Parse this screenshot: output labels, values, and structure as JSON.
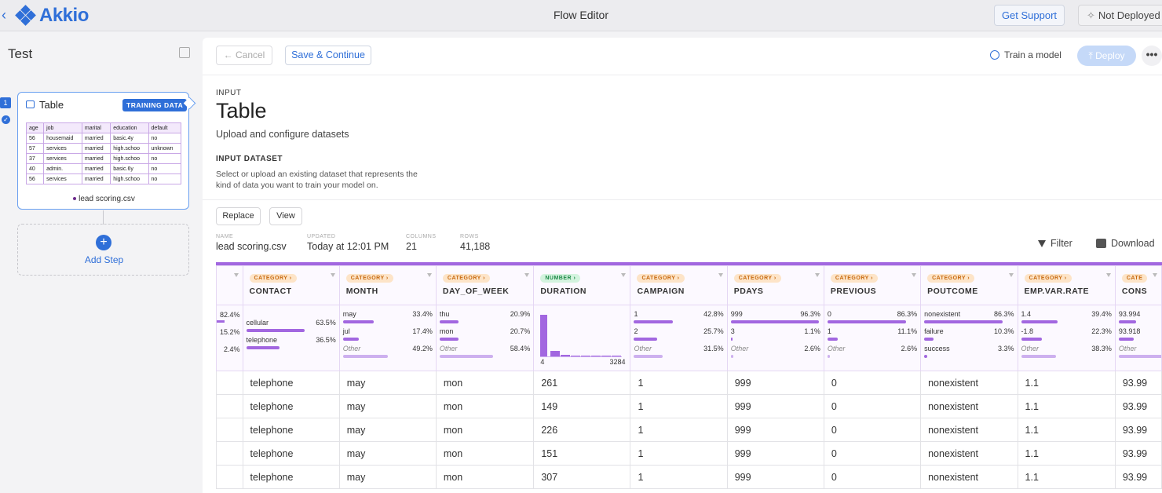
{
  "topbar": {
    "back": "‹",
    "logo": "Akkio",
    "title": "Flow Editor",
    "get_support": "Get Support",
    "deploy_status": "Not Deployed"
  },
  "sidebar": {
    "flow_name": "Test",
    "step_number": "1",
    "step": {
      "title": "Table",
      "badge": "TRAINING DATA",
      "file": "lead scoring.csv",
      "preview": {
        "headers": [
          "age",
          "job",
          "marital",
          "education",
          "default"
        ],
        "rows": [
          [
            "56",
            "housemaid",
            "married",
            "basic.4y",
            "no"
          ],
          [
            "57",
            "services",
            "married",
            "high.schoo",
            "unknown"
          ],
          [
            "37",
            "services",
            "married",
            "high.schoo",
            "no"
          ],
          [
            "40",
            "admin.",
            "married",
            "basic.6y",
            "no"
          ],
          [
            "56",
            "services",
            "married",
            "high.schoo",
            "no"
          ]
        ]
      }
    },
    "add_step": "Add Step"
  },
  "toolbar": {
    "cancel": "← Cancel",
    "save": "Save & Continue",
    "train": "Train a model",
    "deploy": "Deploy",
    "more": "•••"
  },
  "page": {
    "eyebrow": "INPUT",
    "title": "Table",
    "subtitle": "Upload and configure datasets",
    "dataset_label": "INPUT DATASET",
    "dataset_desc": "Select or upload an existing dataset that represents the kind of data you want to train your model on.",
    "replace": "Replace",
    "view": "View"
  },
  "meta": {
    "name_k": "NAME",
    "name_v": "lead scoring.csv",
    "updated_k": "UPDATED",
    "updated_v": "Today at 12:01 PM",
    "columns_k": "COLUMNS",
    "columns_v": "21",
    "rows_k": "ROWS",
    "rows_v": "41,188",
    "filter": "Filter",
    "download": "Download"
  },
  "first_col_stats": [
    "82.4%",
    "15.2%",
    "2.4%"
  ],
  "columns": [
    {
      "type": "CATEGORY ›",
      "name": "CONTACT",
      "stats": [
        {
          "label": "cellular",
          "pct": "63.5%",
          "frac": 0.635
        },
        {
          "label": "telephone",
          "pct": "36.5%",
          "frac": 0.365
        }
      ]
    },
    {
      "type": "CATEGORY ›",
      "name": "MONTH",
      "stats": [
        {
          "label": "may",
          "pct": "33.4%",
          "frac": 0.334
        },
        {
          "label": "jul",
          "pct": "17.4%",
          "frac": 0.174
        },
        {
          "label": "Other",
          "pct": "49.2%",
          "frac": 0.492,
          "other": true
        }
      ]
    },
    {
      "type": "CATEGORY ›",
      "name": "DAY_OF_WEEK",
      "stats": [
        {
          "label": "thu",
          "pct": "20.9%",
          "frac": 0.209
        },
        {
          "label": "mon",
          "pct": "20.7%",
          "frac": 0.207
        },
        {
          "label": "Other",
          "pct": "58.4%",
          "frac": 0.584,
          "other": true
        }
      ]
    },
    {
      "type": "NUMBER ›",
      "name": "DURATION",
      "number": true,
      "min": "4",
      "max": "3284",
      "hist": [
        0.95,
        0.12,
        0.03,
        0.02,
        0.01,
        0.01,
        0.01,
        0.01
      ]
    },
    {
      "type": "CATEGORY ›",
      "name": "CAMPAIGN",
      "stats": [
        {
          "label": "1",
          "pct": "42.8%",
          "frac": 0.428
        },
        {
          "label": "2",
          "pct": "25.7%",
          "frac": 0.257
        },
        {
          "label": "Other",
          "pct": "31.5%",
          "frac": 0.315,
          "other": true
        }
      ]
    },
    {
      "type": "CATEGORY ›",
      "name": "PDAYS",
      "stats": [
        {
          "label": "999",
          "pct": "96.3%",
          "frac": 0.963
        },
        {
          "label": "3",
          "pct": "1.1%",
          "frac": 0.011
        },
        {
          "label": "Other",
          "pct": "2.6%",
          "frac": 0.026,
          "other": true
        }
      ]
    },
    {
      "type": "CATEGORY ›",
      "name": "PREVIOUS",
      "stats": [
        {
          "label": "0",
          "pct": "86.3%",
          "frac": 0.863
        },
        {
          "label": "1",
          "pct": "11.1%",
          "frac": 0.111
        },
        {
          "label": "Other",
          "pct": "2.6%",
          "frac": 0.026,
          "other": true
        }
      ]
    },
    {
      "type": "CATEGORY ›",
      "name": "POUTCOME",
      "stats": [
        {
          "label": "nonexistent",
          "pct": "86.3%",
          "frac": 0.863
        },
        {
          "label": "failure",
          "pct": "10.3%",
          "frac": 0.103
        },
        {
          "label": "success",
          "pct": "3.3%",
          "frac": 0.033
        }
      ]
    },
    {
      "type": "CATEGORY ›",
      "name": "EMP.VAR.RATE",
      "stats": [
        {
          "label": "1.4",
          "pct": "39.4%",
          "frac": 0.394
        },
        {
          "label": "-1.8",
          "pct": "22.3%",
          "frac": 0.223
        },
        {
          "label": "Other",
          "pct": "38.3%",
          "frac": 0.383,
          "other": true
        }
      ]
    },
    {
      "type": "CATE",
      "name": "CONS",
      "stats": [
        {
          "label": "93.994",
          "pct": "",
          "frac": 0.19
        },
        {
          "label": "93.918",
          "pct": "",
          "frac": 0.16
        },
        {
          "label": "Other",
          "pct": "",
          "frac": 0.65,
          "other": true
        }
      ]
    }
  ],
  "rows": [
    [
      "telephone",
      "may",
      "mon",
      "261",
      "1",
      "999",
      "0",
      "nonexistent",
      "1.1",
      "93.99"
    ],
    [
      "telephone",
      "may",
      "mon",
      "149",
      "1",
      "999",
      "0",
      "nonexistent",
      "1.1",
      "93.99"
    ],
    [
      "telephone",
      "may",
      "mon",
      "226",
      "1",
      "999",
      "0",
      "nonexistent",
      "1.1",
      "93.99"
    ],
    [
      "telephone",
      "may",
      "mon",
      "151",
      "1",
      "999",
      "0",
      "nonexistent",
      "1.1",
      "93.99"
    ],
    [
      "telephone",
      "may",
      "mon",
      "307",
      "1",
      "999",
      "0",
      "nonexistent",
      "1.1",
      "93.99"
    ]
  ]
}
